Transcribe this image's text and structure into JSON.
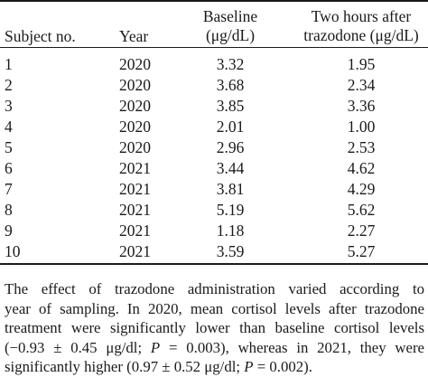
{
  "table": {
    "headers": {
      "subject": "Subject no.",
      "year": "Year",
      "baseline_l1": "Baseline",
      "baseline_l2": "(μg/dL)",
      "after_l1": "Two hours after",
      "after_l2": "trazodone (μg/dL)"
    },
    "rows": [
      {
        "subject": "1",
        "year": "2020",
        "baseline": "3.32",
        "after": "1.95"
      },
      {
        "subject": "2",
        "year": "2020",
        "baseline": "3.68",
        "after": "2.34"
      },
      {
        "subject": "3",
        "year": "2020",
        "baseline": "3.85",
        "after": "3.36"
      },
      {
        "subject": "4",
        "year": "2020",
        "baseline": "2.01",
        "after": "1.00"
      },
      {
        "subject": "5",
        "year": "2020",
        "baseline": "2.96",
        "after": "2.53"
      },
      {
        "subject": "6",
        "year": "2021",
        "baseline": "3.44",
        "after": "4.62"
      },
      {
        "subject": "7",
        "year": "2021",
        "baseline": "3.81",
        "after": "4.29"
      },
      {
        "subject": "8",
        "year": "2021",
        "baseline": "5.19",
        "after": "5.62"
      },
      {
        "subject": "9",
        "year": "2021",
        "baseline": "1.18",
        "after": "2.27"
      },
      {
        "subject": "10",
        "year": "2021",
        "baseline": "3.59",
        "after": "5.27"
      }
    ]
  },
  "footnote": {
    "lines": [
      "The effect of trazodone administration varied according to",
      "year of sampling. In 2020, mean cortisol levels after trazodone",
      "treatment were significantly lower than baseline cortisol levels",
      "(−0.93 ± 0.45 μg/dl; P = 0.003), whereas in 2021, they were",
      "significantly higher (0.97 ± 0.52 μg/dl; P = 0.002)."
    ]
  }
}
